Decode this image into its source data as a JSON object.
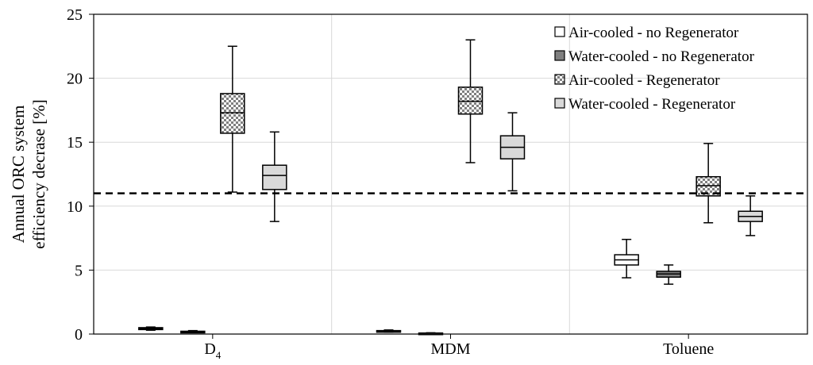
{
  "chart_data": {
    "type": "box",
    "ylabel_lines": [
      "Annual ORC system",
      "efficiency decrase [%]"
    ],
    "categories": [
      {
        "main": "D",
        "sub": "4"
      },
      {
        "main": "MDM",
        "sub": ""
      },
      {
        "main": "Toluene",
        "sub": ""
      }
    ],
    "ylim": [
      0,
      25
    ],
    "yticks": [
      "0",
      "5",
      "10",
      "15",
      "20",
      "25"
    ],
    "reference_line": {
      "y": 11.0,
      "style": "dashed"
    },
    "legend_position": "top-right",
    "series": [
      {
        "name": "Air-cooled - no Regenerator",
        "fill": "white",
        "boxes": [
          {
            "min": 0.3,
            "q1": 0.35,
            "median": 0.42,
            "q3": 0.5,
            "max": 0.55
          },
          {
            "min": 0.15,
            "q1": 0.18,
            "median": 0.23,
            "q3": 0.27,
            "max": 0.32
          },
          {
            "min": 4.4,
            "q1": 5.4,
            "median": 5.8,
            "q3": 6.2,
            "max": 7.4
          }
        ]
      },
      {
        "name": "Water-cooled - no Regenerator",
        "fill": "dark",
        "boxes": [
          {
            "min": 0.12,
            "q1": 0.15,
            "median": 0.18,
            "q3": 0.22,
            "max": 0.27
          },
          {
            "min": 0.02,
            "q1": 0.04,
            "median": 0.06,
            "q3": 0.08,
            "max": 0.1
          },
          {
            "min": 3.9,
            "q1": 4.45,
            "median": 4.7,
            "q3": 4.9,
            "max": 5.4
          }
        ]
      },
      {
        "name": "Air-cooled - Regenerator",
        "fill": "checker",
        "boxes": [
          {
            "min": 11.1,
            "q1": 15.7,
            "median": 17.3,
            "q3": 18.8,
            "max": 22.5
          },
          {
            "min": 13.4,
            "q1": 17.2,
            "median": 18.2,
            "q3": 19.3,
            "max": 23.0
          },
          {
            "min": 8.7,
            "q1": 10.8,
            "median": 11.6,
            "q3": 12.3,
            "max": 14.9
          }
        ]
      },
      {
        "name": "Water-cooled - Regenerator",
        "fill": "light",
        "boxes": [
          {
            "min": 8.8,
            "q1": 11.3,
            "median": 12.4,
            "q3": 13.2,
            "max": 15.8
          },
          {
            "min": 11.2,
            "q1": 13.7,
            "median": 14.6,
            "q3": 15.5,
            "max": 17.3
          },
          {
            "min": 7.7,
            "q1": 8.8,
            "median": 9.2,
            "q3": 9.6,
            "max": 10.8
          }
        ]
      }
    ],
    "colors": {
      "white": "#ffffff",
      "dark": "#7f7f7f",
      "light": "#d9d9d9",
      "checker_a": "#ffffff",
      "checker_b": "#7f7f7f",
      "grid": "#d9d9d9",
      "axis": "#000000"
    }
  }
}
